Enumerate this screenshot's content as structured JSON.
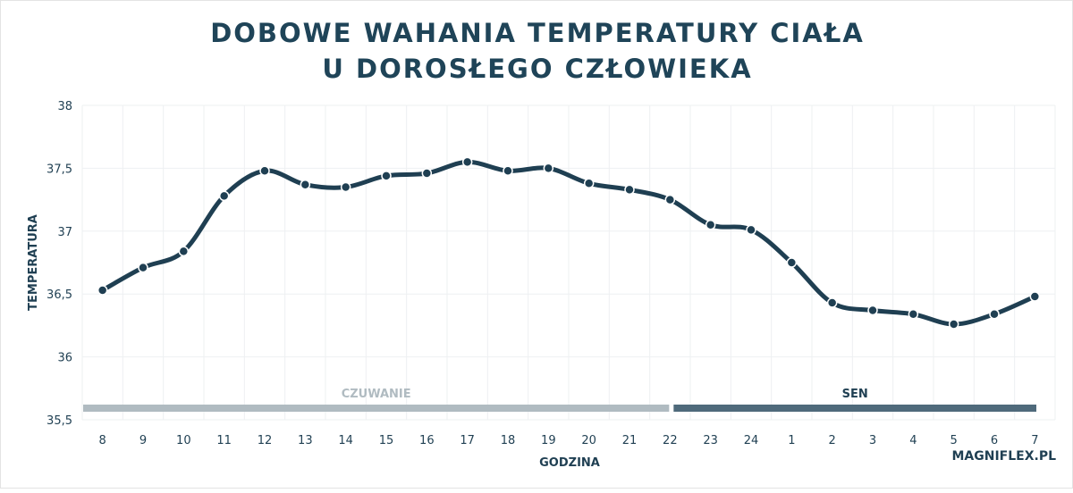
{
  "chart_data": {
    "type": "line",
    "title": [
      "DOBOWE WAHANIA TEMPERATURY CIAŁA",
      "U DOROSŁEGO CZŁOWIEKA"
    ],
    "xlabel": "GODZINA",
    "ylabel": "TEMPERATURA",
    "categories": [
      "8",
      "9",
      "10",
      "11",
      "12",
      "13",
      "14",
      "15",
      "16",
      "17",
      "18",
      "19",
      "20",
      "21",
      "22",
      "23",
      "24",
      "1",
      "2",
      "3",
      "4",
      "5",
      "6",
      "7"
    ],
    "values": [
      36.53,
      36.71,
      36.84,
      37.28,
      37.48,
      37.37,
      37.35,
      37.44,
      37.46,
      37.55,
      37.48,
      37.5,
      37.38,
      37.33,
      37.25,
      37.05,
      37.01,
      36.75,
      36.43,
      36.37,
      36.34,
      36.26,
      36.34,
      36.48
    ],
    "yticks": [
      "38",
      "37,5",
      "37",
      "36,5",
      "36",
      "35,5"
    ],
    "ylim": [
      35.5,
      38
    ],
    "grid": true,
    "phases": [
      {
        "label": "CZUWANIE",
        "from": "8",
        "to": "22",
        "color": "#b0bbc1"
      },
      {
        "label": "SEN",
        "from": "22",
        "to": "7",
        "color": "#4f6a7b"
      }
    ],
    "line_color": "#1f3f52",
    "source": "MAGNIFLEX.PL"
  }
}
